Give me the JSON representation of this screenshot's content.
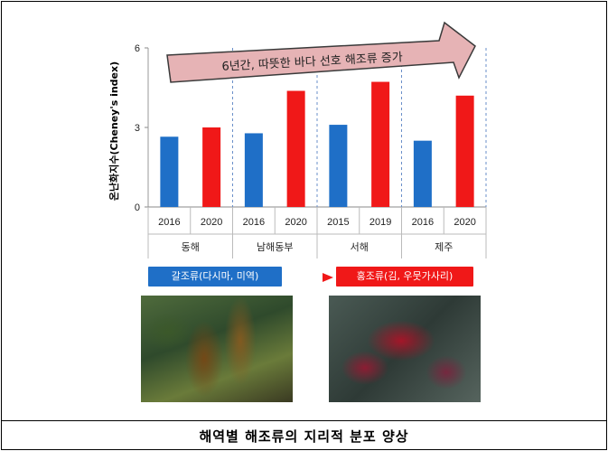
{
  "chart_data": {
    "type": "bar",
    "ylabel": "온난화지수(Cheney's index)",
    "ylim": [
      0,
      6
    ],
    "yticks": [
      0,
      3,
      6
    ],
    "groups": [
      {
        "name": "동해",
        "bars": [
          {
            "year": "2016",
            "value": 2.65,
            "color": "#1f6fc7"
          },
          {
            "year": "2020",
            "value": 3.0,
            "color": "#f01818"
          }
        ]
      },
      {
        "name": "남해동부",
        "bars": [
          {
            "year": "2016",
            "value": 2.78,
            "color": "#1f6fc7"
          },
          {
            "year": "2020",
            "value": 4.38,
            "color": "#f01818"
          }
        ]
      },
      {
        "name": "서해",
        "bars": [
          {
            "year": "2015",
            "value": 3.1,
            "color": "#1f6fc7"
          },
          {
            "year": "2019",
            "value": 4.72,
            "color": "#f01818"
          }
        ]
      },
      {
        "name": "제주",
        "bars": [
          {
            "year": "2016",
            "value": 2.5,
            "color": "#1f6fc7"
          },
          {
            "year": "2020",
            "value": 4.2,
            "color": "#f01818"
          }
        ]
      }
    ],
    "annotation": "6년간, 따뜻한 바다 선호 해조류 증가",
    "colors": {
      "blue": "#1f6fc7",
      "red": "#f01818",
      "arrow_fill": "#e6b3b5",
      "arrow_stroke": "#3a3a3a"
    }
  },
  "legend": {
    "blue_label": "갈조류(다시마, 미역)",
    "red_label": "홍조류(김, 우뭇가사리)"
  },
  "caption": "해역별 해조류의 지리적 분포 양상"
}
